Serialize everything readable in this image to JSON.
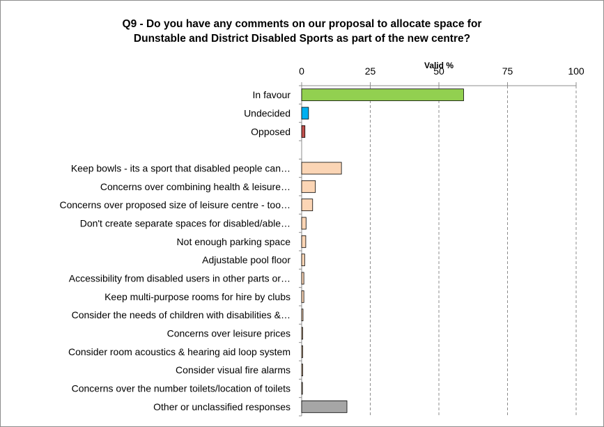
{
  "chart_data": {
    "type": "bar",
    "orientation": "horizontal",
    "title": "Q9 - Do you have any comments on our proposal to allocate space for Dunstable and District Disabled Sports as part of the new centre?",
    "title_lines": [
      "Q9 - Do you have any comments on our proposal to allocate space for",
      "Dunstable and District Disabled Sports as part of the new centre?"
    ],
    "xlabel": "Valid %",
    "xlim": [
      0,
      100
    ],
    "xticks": [
      0,
      25,
      50,
      75,
      100
    ],
    "grid": true,
    "categories": [
      "In favour",
      "Undecided",
      "Opposed",
      "",
      "Keep bowls - its a sport that disabled people can…",
      "Concerns over combining health & leisure…",
      "Concerns over proposed size of leisure centre - too…",
      "Don't create separate spaces for disabled/able…",
      "Not enough parking space",
      "Adjustable pool floor",
      "Accessibility from disabled users in other parts or…",
      "Keep multi-purpose rooms for hire by clubs",
      "Consider the needs of children with disabilities &…",
      "Concerns over leisure prices",
      "Consider room acoustics & hearing aid loop system",
      "Consider visual fire alarms",
      "Concerns over the number toilets/location of toilets",
      "Other or unclassified responses"
    ],
    "values": [
      59,
      2.5,
      1.2,
      null,
      14.5,
      5,
      4,
      1.6,
      1.5,
      1.1,
      0.8,
      0.8,
      0.5,
      0.4,
      0.4,
      0.4,
      0.3,
      16.5
    ],
    "colors": [
      "#92d050",
      "#00b0f0",
      "#c0504d",
      null,
      "#fbd5b5",
      "#fbd5b5",
      "#fbd5b5",
      "#fbd5b5",
      "#fbd5b5",
      "#fbd5b5",
      "#fbd5b5",
      "#fbd5b5",
      "#fbd5b5",
      "#fbd5b5",
      "#fbd5b5",
      "#fbd5b5",
      "#fbd5b5",
      "#a6a6a6"
    ]
  }
}
